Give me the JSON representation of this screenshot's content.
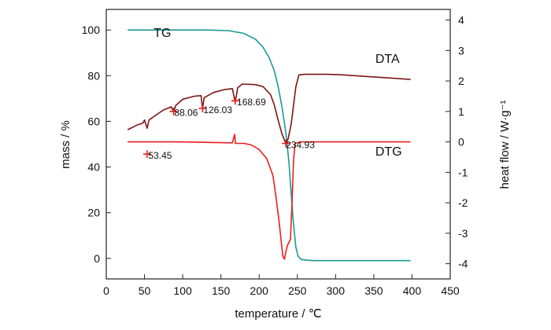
{
  "chart_data": {
    "type": "line",
    "xlabel": "temperature / ℃",
    "ylabel_left": "mass / %",
    "ylabel_right": "heat flow / W·g⁻¹",
    "xlim": [
      0,
      450
    ],
    "ylim_left": [
      -9,
      109
    ],
    "ylim_right": [
      -4.5,
      4.35
    ],
    "x_ticks": [
      "0",
      "50",
      "100",
      "150",
      "200",
      "250",
      "300",
      "350",
      "400",
      "450"
    ],
    "y_left_ticks": [
      "0",
      "20",
      "40",
      "60",
      "80",
      "100"
    ],
    "y_right_ticks": [
      "-4",
      "-3",
      "-2",
      "-1",
      "0",
      "1",
      "2",
      "3",
      "4"
    ],
    "grid": false,
    "series": [
      {
        "name": "TG",
        "axis": "left",
        "color": "#1a9a96",
        "points": [
          [
            28,
            100
          ],
          [
            90,
            100
          ],
          [
            130,
            100
          ],
          [
            160,
            99.7
          ],
          [
            180,
            98.5
          ],
          [
            195,
            96
          ],
          [
            205,
            92.5
          ],
          [
            213,
            88
          ],
          [
            220,
            82
          ],
          [
            225,
            75
          ],
          [
            230,
            66
          ],
          [
            235,
            55
          ],
          [
            239,
            42
          ],
          [
            242,
            28
          ],
          [
            245,
            15
          ],
          [
            248,
            5
          ],
          [
            251,
            1
          ],
          [
            255,
            -0.5
          ],
          [
            270,
            -1
          ],
          [
            300,
            -1
          ],
          [
            350,
            -1
          ],
          [
            398,
            -1
          ]
        ]
      },
      {
        "name": "DTA",
        "axis": "right",
        "color": "#7a1616",
        "points": [
          [
            28,
            0.4
          ],
          [
            40,
            0.55
          ],
          [
            48,
            0.62
          ],
          [
            50,
            0.72
          ],
          [
            53.45,
            0.45
          ],
          [
            56,
            0.72
          ],
          [
            65,
            0.88
          ],
          [
            75,
            1.05
          ],
          [
            85,
            1.15
          ],
          [
            88.06,
            1.0
          ],
          [
            91,
            1.2
          ],
          [
            100,
            1.4
          ],
          [
            115,
            1.5
          ],
          [
            124,
            1.52
          ],
          [
            126.03,
            1.08
          ],
          [
            128,
            1.45
          ],
          [
            140,
            1.62
          ],
          [
            155,
            1.72
          ],
          [
            165,
            1.75
          ],
          [
            168.69,
            1.3
          ],
          [
            172,
            1.78
          ],
          [
            178,
            1.9
          ],
          [
            195,
            1.88
          ],
          [
            205,
            1.82
          ],
          [
            215,
            1.55
          ],
          [
            220,
            1.2
          ],
          [
            225,
            0.7
          ],
          [
            230,
            0.25
          ],
          [
            234.93,
            -0.05
          ],
          [
            238,
            0.1
          ],
          [
            242,
            0.6
          ],
          [
            245,
            1.2
          ],
          [
            248,
            1.8
          ],
          [
            252,
            2.2
          ],
          [
            260,
            2.22
          ],
          [
            290,
            2.22
          ],
          [
            310,
            2.2
          ],
          [
            340,
            2.15
          ],
          [
            370,
            2.1
          ],
          [
            398,
            2.05
          ]
        ]
      },
      {
        "name": "DTG",
        "axis": "right",
        "color": "#ee1c1c",
        "points": [
          [
            28,
            0
          ],
          [
            100,
            0
          ],
          [
            165,
            -0.03
          ],
          [
            168,
            0.25
          ],
          [
            169,
            -0.05
          ],
          [
            180,
            -0.05
          ],
          [
            190,
            -0.1
          ],
          [
            200,
            -0.25
          ],
          [
            210,
            -0.55
          ],
          [
            218,
            -1.1
          ],
          [
            222,
            -1.8
          ],
          [
            226,
            -2.6
          ],
          [
            229,
            -3.3
          ],
          [
            231,
            -3.75
          ],
          [
            233,
            -3.85
          ],
          [
            235,
            -3.6
          ],
          [
            237,
            -3.4
          ],
          [
            239,
            -3.3
          ],
          [
            241,
            -3.2
          ],
          [
            243,
            -2.0
          ],
          [
            245,
            -0.6
          ],
          [
            247,
            -0.05
          ],
          [
            255,
            0
          ],
          [
            300,
            0
          ],
          [
            350,
            0
          ],
          [
            398,
            0
          ]
        ]
      }
    ],
    "markers": [
      {
        "x": 53.45,
        "y": -0.4
      },
      {
        "x": 88.06,
        "y": 1.0
      },
      {
        "x": 126.03,
        "y": 1.1
      },
      {
        "x": 168.69,
        "y": 1.35
      },
      {
        "x": 234.93,
        "y": -0.05
      }
    ],
    "annotations": [
      {
        "text": "TG",
        "x": 62,
        "y": 97,
        "axis": "left"
      },
      {
        "text": "DTA",
        "x": 352,
        "y": 2.6,
        "axis": "right"
      },
      {
        "text": "DTG",
        "x": 352,
        "y": -0.45,
        "axis": "right"
      },
      {
        "text": "53.45",
        "x": 55,
        "y": -0.55,
        "axis": "right"
      },
      {
        "text": "88.06",
        "x": 89,
        "y": 0.85,
        "axis": "right"
      },
      {
        "text": "126.03",
        "x": 127,
        "y": 0.95,
        "axis": "right"
      },
      {
        "text": "168.69",
        "x": 171,
        "y": 1.2,
        "axis": "right"
      },
      {
        "text": "234.93",
        "x": 235,
        "y": -0.2,
        "axis": "right"
      }
    ]
  }
}
